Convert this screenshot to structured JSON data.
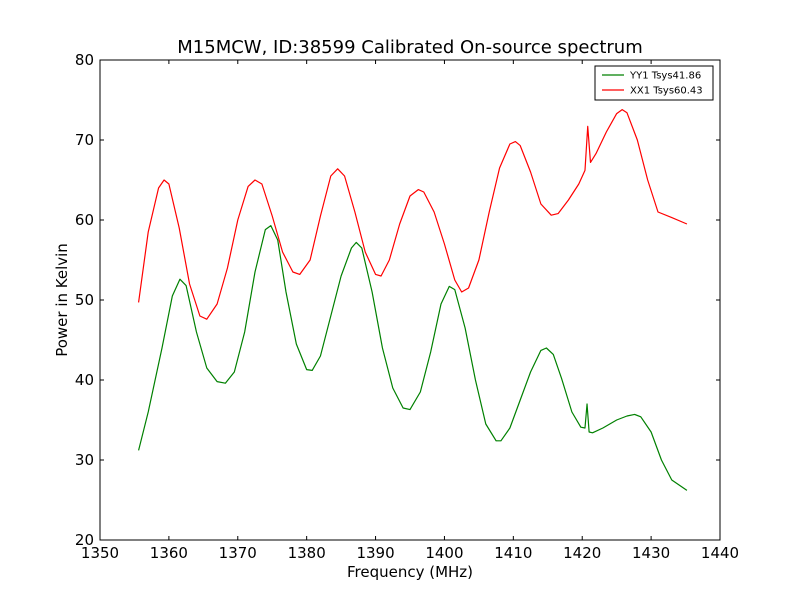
{
  "chart_data": {
    "type": "line",
    "title": "M15MCW, ID:38599 Calibrated On-source spectrum",
    "xlabel": "Frequency (MHz)",
    "ylabel": "Power in Kelvin",
    "xlim": [
      1350,
      1440
    ],
    "ylim": [
      20,
      80
    ],
    "xticks": [
      1350,
      1360,
      1370,
      1380,
      1390,
      1400,
      1410,
      1420,
      1430,
      1440
    ],
    "yticks": [
      20,
      30,
      40,
      50,
      60,
      70,
      80
    ],
    "grid": false,
    "legend_position": "top-right",
    "series": [
      {
        "name": "YY1 Tsys41.86",
        "color": "#008000",
        "x": [
          1355.6,
          1357,
          1359,
          1360.5,
          1361.6,
          1362.5,
          1364,
          1365.5,
          1367,
          1368.2,
          1369.5,
          1371,
          1372.5,
          1374,
          1374.8,
          1375.8,
          1377,
          1378.5,
          1380,
          1380.8,
          1382,
          1383.5,
          1385,
          1386.5,
          1387.2,
          1388,
          1389.5,
          1391,
          1392.5,
          1394,
          1395,
          1396.5,
          1398,
          1399.5,
          1400.7,
          1401.5,
          1403,
          1404.5,
          1406,
          1407.5,
          1408.2,
          1409.5,
          1411,
          1412.5,
          1414,
          1414.8,
          1415.8,
          1417,
          1418.5,
          1419.8,
          1420.4,
          1420.7,
          1421,
          1421.5,
          1423,
          1425,
          1426.5,
          1427.6,
          1428.5,
          1430,
          1431.5,
          1433,
          1435.2
        ],
        "y": [
          31.2,
          36,
          44,
          50.5,
          52.6,
          51.8,
          46,
          41.5,
          39.8,
          39.6,
          41,
          46,
          53.5,
          58.8,
          59.3,
          57.5,
          51,
          44.5,
          41.3,
          41.2,
          43,
          48,
          53,
          56.5,
          57.2,
          56.5,
          51,
          44,
          39,
          36.5,
          36.3,
          38.5,
          43.5,
          49.5,
          51.7,
          51.3,
          46.5,
          40,
          34.5,
          32.4,
          32.4,
          34,
          37.5,
          41,
          43.7,
          44,
          43.2,
          40.2,
          36,
          34.1,
          34,
          37,
          33.5,
          33.4,
          34,
          35,
          35.5,
          35.7,
          35.4,
          33.5,
          30,
          27.5,
          26.2
        ]
      },
      {
        "name": "XX1 Tsys60.43",
        "color": "#ff0000",
        "x": [
          1355.6,
          1357,
          1358.5,
          1359.3,
          1360,
          1361.5,
          1363,
          1364.5,
          1365.5,
          1367,
          1368.5,
          1370,
          1371.5,
          1372.5,
          1373.5,
          1375,
          1376.5,
          1378,
          1379,
          1380.5,
          1382,
          1383.5,
          1384.5,
          1385.5,
          1387,
          1388.5,
          1390,
          1390.8,
          1392,
          1393.5,
          1395,
          1396.2,
          1397,
          1398.5,
          1400,
          1401.5,
          1402.5,
          1403.5,
          1405,
          1406.5,
          1408,
          1409.5,
          1410.3,
          1411,
          1412.5,
          1414,
          1415.5,
          1416.5,
          1418,
          1419.5,
          1420.4,
          1420.8,
          1421.2,
          1422,
          1423.5,
          1425,
          1425.8,
          1426.5,
          1428,
          1429.5,
          1431,
          1433,
          1435.2
        ],
        "y": [
          49.7,
          58.5,
          64,
          65,
          64.5,
          59,
          52,
          48,
          47.6,
          49.5,
          54,
          60,
          64.2,
          65,
          64.5,
          60.5,
          56,
          53.5,
          53.2,
          55,
          60.5,
          65.5,
          66.4,
          65.5,
          61,
          56,
          53.2,
          53,
          55,
          59.5,
          63,
          63.8,
          63.5,
          61,
          57,
          52.5,
          51,
          51.5,
          55,
          61,
          66.5,
          69.5,
          69.8,
          69.3,
          66,
          62,
          60.6,
          60.8,
          62.5,
          64.5,
          66.2,
          71.7,
          67.2,
          68.3,
          71,
          73.3,
          73.8,
          73.4,
          70,
          65,
          61,
          60.3,
          59.5
        ]
      }
    ]
  }
}
